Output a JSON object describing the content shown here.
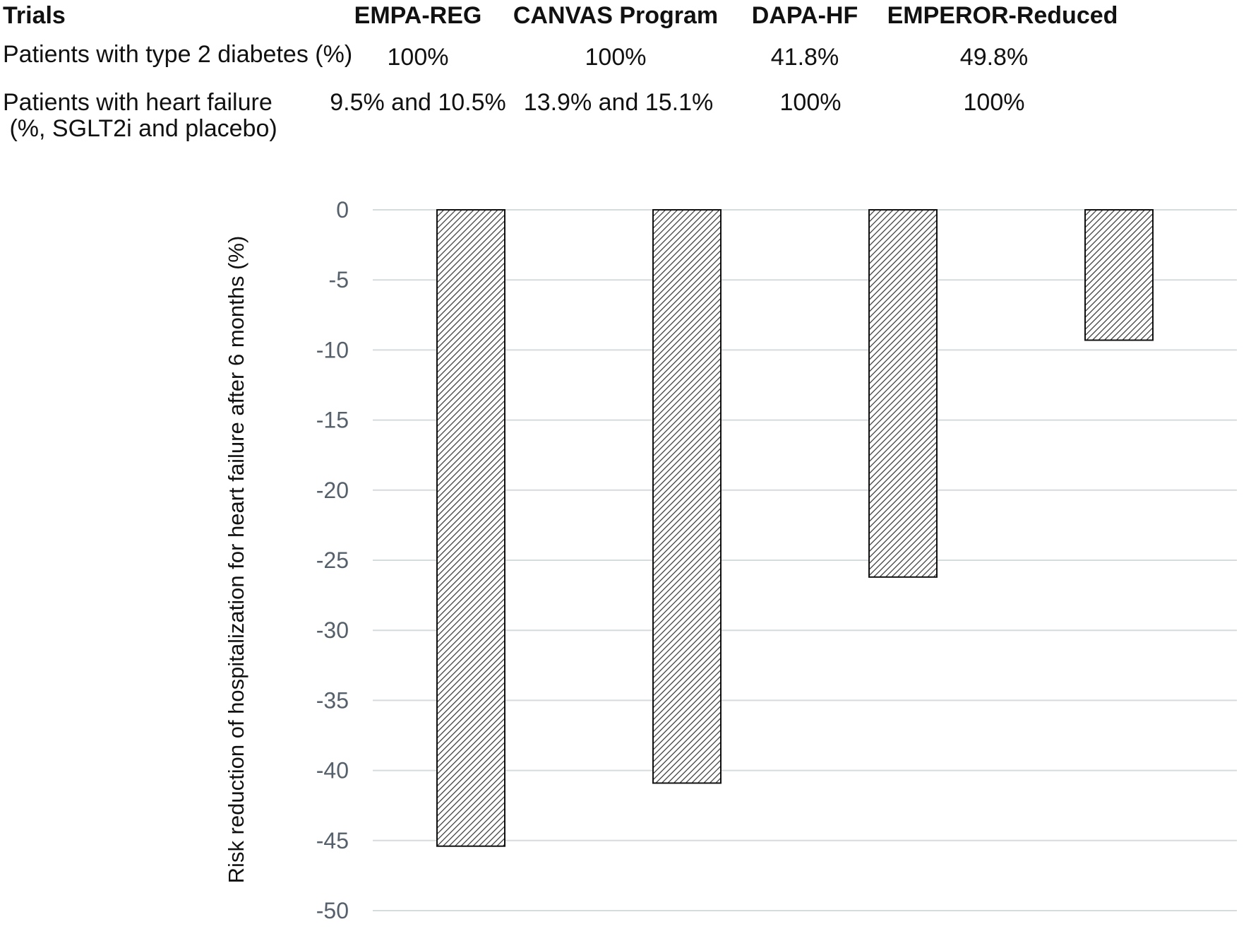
{
  "table": {
    "header_label": "Trials",
    "row1_label": "Patients with type 2 diabetes (%)",
    "row2_label_line1": "Patients with heart failure",
    "row2_label_line2": " (%, SGLT2i and placebo)",
    "trials": [
      {
        "name": "EMPA-REG",
        "diabetes": "100%",
        "heart_failure": "9.5% and 10.5%"
      },
      {
        "name": "CANVAS Program",
        "diabetes": "100%",
        "heart_failure": "13.9% and 15.1%"
      },
      {
        "name": "DAPA-HF",
        "diabetes": "41.8%",
        "heart_failure": "100%"
      },
      {
        "name": "EMPEROR-Reduced",
        "diabetes": "49.8%",
        "heart_failure": "100%"
      }
    ]
  },
  "chart_data": {
    "type": "bar",
    "categories": [
      "EMPA-REG",
      "CANVAS Program",
      "DAPA-HF",
      "EMPEROR-Reduced"
    ],
    "values": [
      -45.4,
      -40.9,
      -26.2,
      -9.3
    ],
    "ylabel": "Risk reduction of hospitalization for heart failure after 6 months (%)",
    "ylim": [
      -50,
      0
    ],
    "yticks": [
      0,
      -5,
      -10,
      -15,
      -20,
      -25,
      -30,
      -35,
      -40,
      -45,
      -50
    ],
    "grid": true,
    "bar_fill": "hatched",
    "colors": {
      "grid": "#d6dcde",
      "bar_stroke": "#111111",
      "hatch": "#333333",
      "bar_background": "#ffffff",
      "tick_text": "#55606a"
    }
  }
}
